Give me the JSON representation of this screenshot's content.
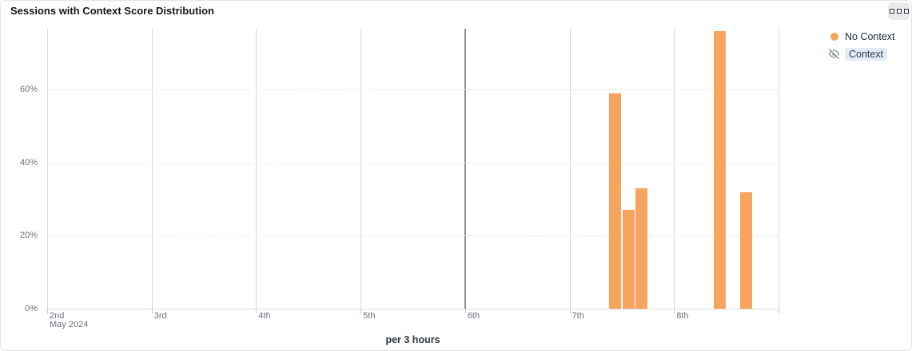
{
  "header": {
    "title": "Sessions with Context Score Distribution",
    "options_icon": "grid-squares-icon"
  },
  "legend": {
    "items": [
      {
        "label": "No Context",
        "visible": true,
        "color": "#f7a45e",
        "marker": "dot"
      },
      {
        "label": "Context",
        "visible": false,
        "marker": "eye-off-icon"
      }
    ]
  },
  "chart_data": {
    "type": "bar",
    "title": "Sessions with Context Score Distribution",
    "unit_label": "per 3 hours",
    "month_label": "May 2024",
    "x_day_labels": [
      "2nd",
      "3rd",
      "4th",
      "5th",
      "6th",
      "7th",
      "8th",
      ""
    ],
    "emphasized_day_index": 4,
    "slots_per_day": 8,
    "grid": {
      "vertical": "solid",
      "horizontal": "dashed"
    },
    "y_axis": {
      "ticks": [
        {
          "value": 0,
          "label": "0%"
        },
        {
          "value": 20,
          "label": "20%"
        },
        {
          "value": 40,
          "label": "40%"
        },
        {
          "value": 60,
          "label": "60%"
        }
      ],
      "max": 76.7
    },
    "series": [
      {
        "name": "No Context",
        "color": "#f7a45e",
        "bars": [
          {
            "day": "7th",
            "day_index": 5,
            "slot": 3,
            "value": 59
          },
          {
            "day": "7th",
            "day_index": 5,
            "slot": 4,
            "value": 27
          },
          {
            "day": "7th",
            "day_index": 5,
            "slot": 5,
            "value": 33
          },
          {
            "day": "8th",
            "day_index": 6,
            "slot": 3,
            "value": 76
          },
          {
            "day": "8th",
            "day_index": 6,
            "slot": 5,
            "value": 32
          }
        ]
      },
      {
        "name": "Context",
        "hidden": true,
        "bars": []
      }
    ],
    "legend_position": "top-right"
  }
}
